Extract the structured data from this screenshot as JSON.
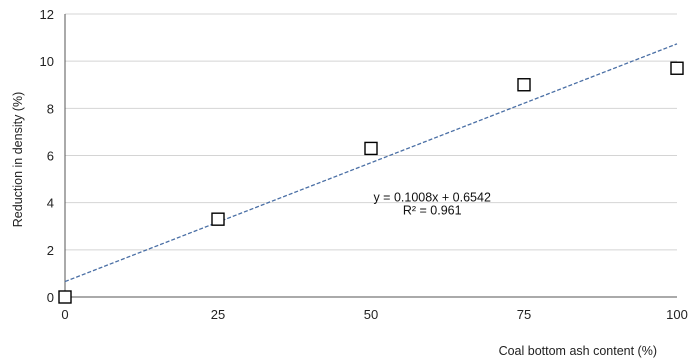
{
  "chart_data": {
    "type": "scatter",
    "title": "",
    "xlabel": "Coal bottom ash content (%)",
    "ylabel": "Reduction in density (%)",
    "xlim": [
      0,
      100
    ],
    "ylim": [
      0,
      12
    ],
    "xticks": [
      0,
      25,
      50,
      75,
      100
    ],
    "yticks": [
      0,
      2,
      4,
      6,
      8,
      10,
      12
    ],
    "grid": "horizontal",
    "series": [
      {
        "marker": "open-square",
        "color": "#000000",
        "points": [
          {
            "x": 0,
            "y": 0
          },
          {
            "x": 25,
            "y": 3.3
          },
          {
            "x": 50,
            "y": 6.3
          },
          {
            "x": 75,
            "y": 9.0
          },
          {
            "x": 100,
            "y": 9.7
          }
        ]
      }
    ],
    "trendline": {
      "type": "linear",
      "slope": 0.1008,
      "intercept": 0.6542,
      "color": "#4a6fa5",
      "style": "dashed",
      "equation": "y = 0.1008x + 0.6542",
      "r_squared": "R² = 0.961"
    }
  }
}
